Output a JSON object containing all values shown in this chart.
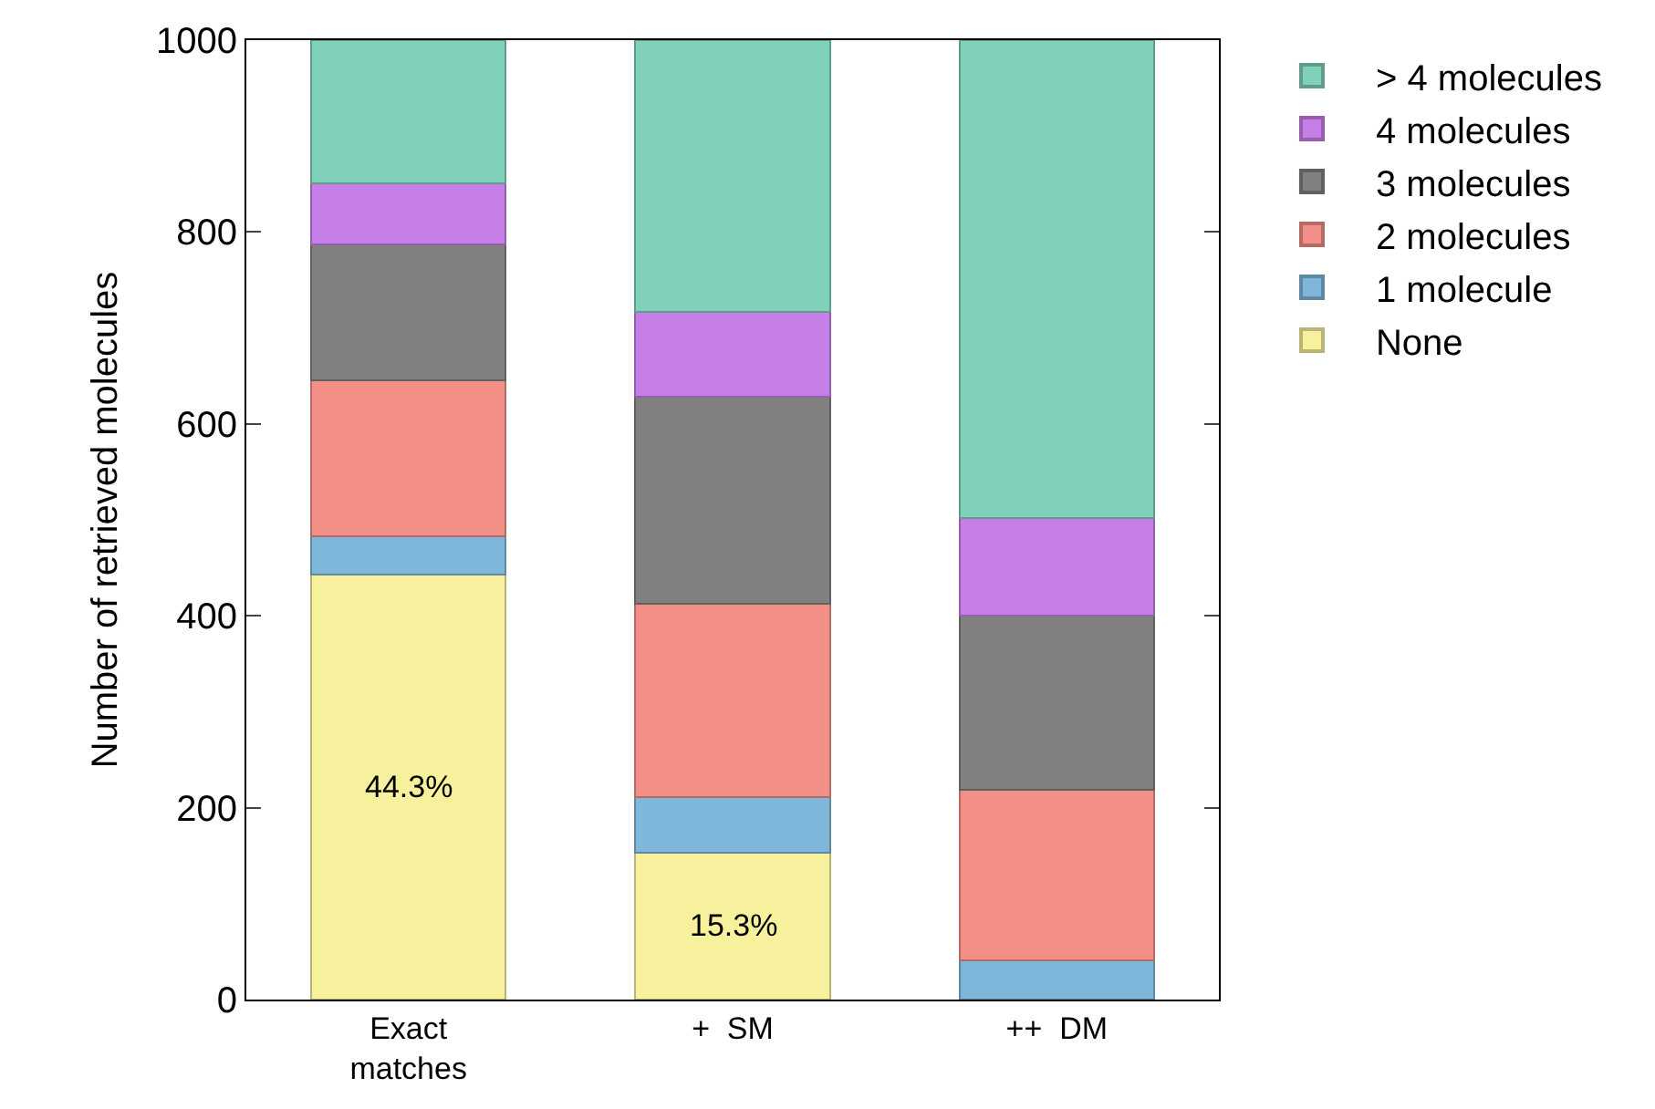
{
  "chart_data": {
    "type": "bar",
    "stacked": true,
    "ylabel": "Number of retrieved molecules",
    "categories": [
      "Exact\nmatches",
      "+  SM",
      "++  DM"
    ],
    "series": [
      {
        "name": "None",
        "color": "#f7f09c",
        "values": [
          443,
          153,
          0
        ]
      },
      {
        "name": "1 molecule",
        "color": "#7fb7da",
        "values": [
          40,
          58,
          41
        ]
      },
      {
        "name": "2 molecules",
        "color": "#f28f86",
        "values": [
          162,
          202,
          178
        ]
      },
      {
        "name": "3 molecules",
        "color": "#808080",
        "values": [
          142,
          215,
          181
        ]
      },
      {
        "name": "4 molecules",
        "color": "#c77fe8",
        "values": [
          64,
          89,
          102
        ]
      },
      {
        "name": "> 4 molecules",
        "color": "#7fd1b9",
        "values": [
          149,
          283,
          498
        ]
      }
    ],
    "ylim": [
      0,
      1000
    ],
    "yticks": [
      0,
      200,
      400,
      600,
      800,
      1000
    ],
    "legend": "right",
    "annotations": [
      "44.3%",
      "15.3%"
    ]
  }
}
